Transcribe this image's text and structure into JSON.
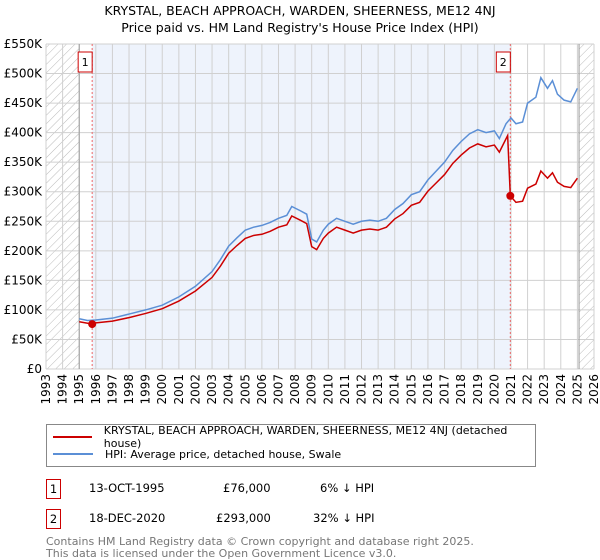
{
  "title": "KRYSTAL, BEACH APPROACH, WARDEN, SHEERNESS, ME12 4NJ",
  "subtitle": "Price paid vs. HM Land Registry's House Price Index (HPI)",
  "chart_data": {
    "type": "line",
    "xlim": [
      1993,
      2026
    ],
    "ylim": [
      0,
      550000
    ],
    "x_ticks": [
      "1993",
      "1994",
      "1995",
      "1996",
      "1997",
      "1998",
      "1999",
      "2000",
      "2001",
      "2002",
      "2003",
      "2004",
      "2005",
      "2006",
      "2007",
      "2008",
      "2009",
      "2010",
      "2011",
      "2012",
      "2013",
      "2014",
      "2015",
      "2016",
      "2017",
      "2018",
      "2019",
      "2020",
      "2021",
      "2022",
      "2023",
      "2024",
      "2025",
      "2026"
    ],
    "y_ticks": [
      {
        "v": 0,
        "label": "£0"
      },
      {
        "v": 50000,
        "label": "£50K"
      },
      {
        "v": 100000,
        "label": "£100K"
      },
      {
        "v": 150000,
        "label": "£150K"
      },
      {
        "v": 200000,
        "label": "£200K"
      },
      {
        "v": 250000,
        "label": "£250K"
      },
      {
        "v": 300000,
        "label": "£300K"
      },
      {
        "v": 350000,
        "label": "£350K"
      },
      {
        "v": 400000,
        "label": "£400K"
      },
      {
        "v": 450000,
        "label": "£450K"
      },
      {
        "v": 500000,
        "label": "£500K"
      },
      {
        "v": 550000,
        "label": "£550K"
      }
    ],
    "grid": true,
    "hatched_before": 1995.0,
    "hatched_after": 2025.1,
    "series": [
      {
        "name": "KRYSTAL, BEACH APPROACH, WARDEN, SHEERNESS, ME12 4NJ (detached house)",
        "color": "#cc0000",
        "x": [
          1995,
          1995.8,
          1996,
          1997,
          1998,
          1999,
          2000,
          2001,
          2002,
          2003,
          2003.5,
          2004,
          2004.5,
          2005,
          2005.5,
          2006,
          2006.5,
          2007,
          2007.5,
          2007.8,
          2008.3,
          2008.7,
          2009.0,
          2009.3,
          2009.7,
          2010,
          2010.5,
          2011,
          2011.5,
          2012,
          2012.5,
          2013,
          2013.5,
          2014,
          2014.5,
          2015,
          2015.5,
          2016,
          2016.5,
          2017,
          2017.5,
          2018,
          2018.5,
          2019,
          2019.5,
          2020,
          2020.3,
          2020.8,
          2020.96,
          2021.3,
          2021.7,
          2022,
          2022.5,
          2022.8,
          2023.2,
          2023.5,
          2023.8,
          2024.2,
          2024.6,
          2025
        ],
        "y": [
          80000,
          76000,
          78000,
          81000,
          87000,
          94000,
          102000,
          115000,
          132000,
          155000,
          174000,
          196000,
          209000,
          221000,
          226000,
          228000,
          233000,
          240000,
          244000,
          259000,
          252000,
          246000,
          207000,
          202000,
          221000,
          230000,
          240000,
          235000,
          230000,
          235000,
          237000,
          235000,
          240000,
          254000,
          263000,
          277000,
          282000,
          301000,
          315000,
          329000,
          348000,
          362000,
          374000,
          381000,
          376000,
          379000,
          367000,
          395000,
          293000,
          282000,
          284000,
          306000,
          313000,
          335000,
          323000,
          332000,
          316000,
          309000,
          307000,
          323000
        ]
      },
      {
        "name": "HPI: Average price, detached house, Swale",
        "color": "#5b8fd6",
        "x": [
          1995,
          1995.5,
          1996,
          1997,
          1998,
          1999,
          2000,
          2001,
          2002,
          2003,
          2003.5,
          2004,
          2004.5,
          2005,
          2005.5,
          2006,
          2006.5,
          2007,
          2007.5,
          2007.8,
          2008.3,
          2008.7,
          2009.0,
          2009.3,
          2009.7,
          2010,
          2010.5,
          2011,
          2011.5,
          2012,
          2012.5,
          2013,
          2013.5,
          2014,
          2014.5,
          2015,
          2015.5,
          2016,
          2016.5,
          2017,
          2017.5,
          2018,
          2018.5,
          2019,
          2019.5,
          2020,
          2020.3,
          2020.7,
          2021,
          2021.3,
          2021.7,
          2022,
          2022.5,
          2022.8,
          2023.2,
          2023.5,
          2023.8,
          2024.2,
          2024.6,
          2025
        ],
        "y": [
          85000,
          82000,
          83000,
          86000,
          93000,
          100000,
          108000,
          122000,
          140000,
          165000,
          185000,
          208000,
          222000,
          235000,
          240000,
          243000,
          248000,
          255000,
          260000,
          275000,
          268000,
          262000,
          220000,
          215000,
          235000,
          245000,
          255000,
          250000,
          245000,
          250000,
          252000,
          250000,
          255000,
          270000,
          280000,
          295000,
          300000,
          320000,
          335000,
          350000,
          370000,
          385000,
          398000,
          405000,
          400000,
          403000,
          390000,
          415000,
          425000,
          415000,
          418000,
          450000,
          460000,
          493000,
          475000,
          488000,
          465000,
          455000,
          452000,
          475000
        ]
      }
    ],
    "sales": [
      {
        "id": "1",
        "x": 1995.78,
        "y": 76000
      },
      {
        "id": "2",
        "x": 2020.96,
        "y": 293000
      }
    ]
  },
  "legend": [
    "KRYSTAL, BEACH APPROACH, WARDEN, SHEERNESS, ME12 4NJ (detached house)",
    "HPI: Average price, detached house, Swale"
  ],
  "transactions": [
    {
      "id": "1",
      "date": "13-OCT-1995",
      "price": "£76,000",
      "hpi": "6% ↓ HPI"
    },
    {
      "id": "2",
      "date": "18-DEC-2020",
      "price": "£293,000",
      "hpi": "32% ↓ HPI"
    }
  ],
  "footer": [
    "Contains HM Land Registry data © Crown copyright and database right 2025.",
    "This data is licensed under the Open Government Licence v3.0."
  ]
}
